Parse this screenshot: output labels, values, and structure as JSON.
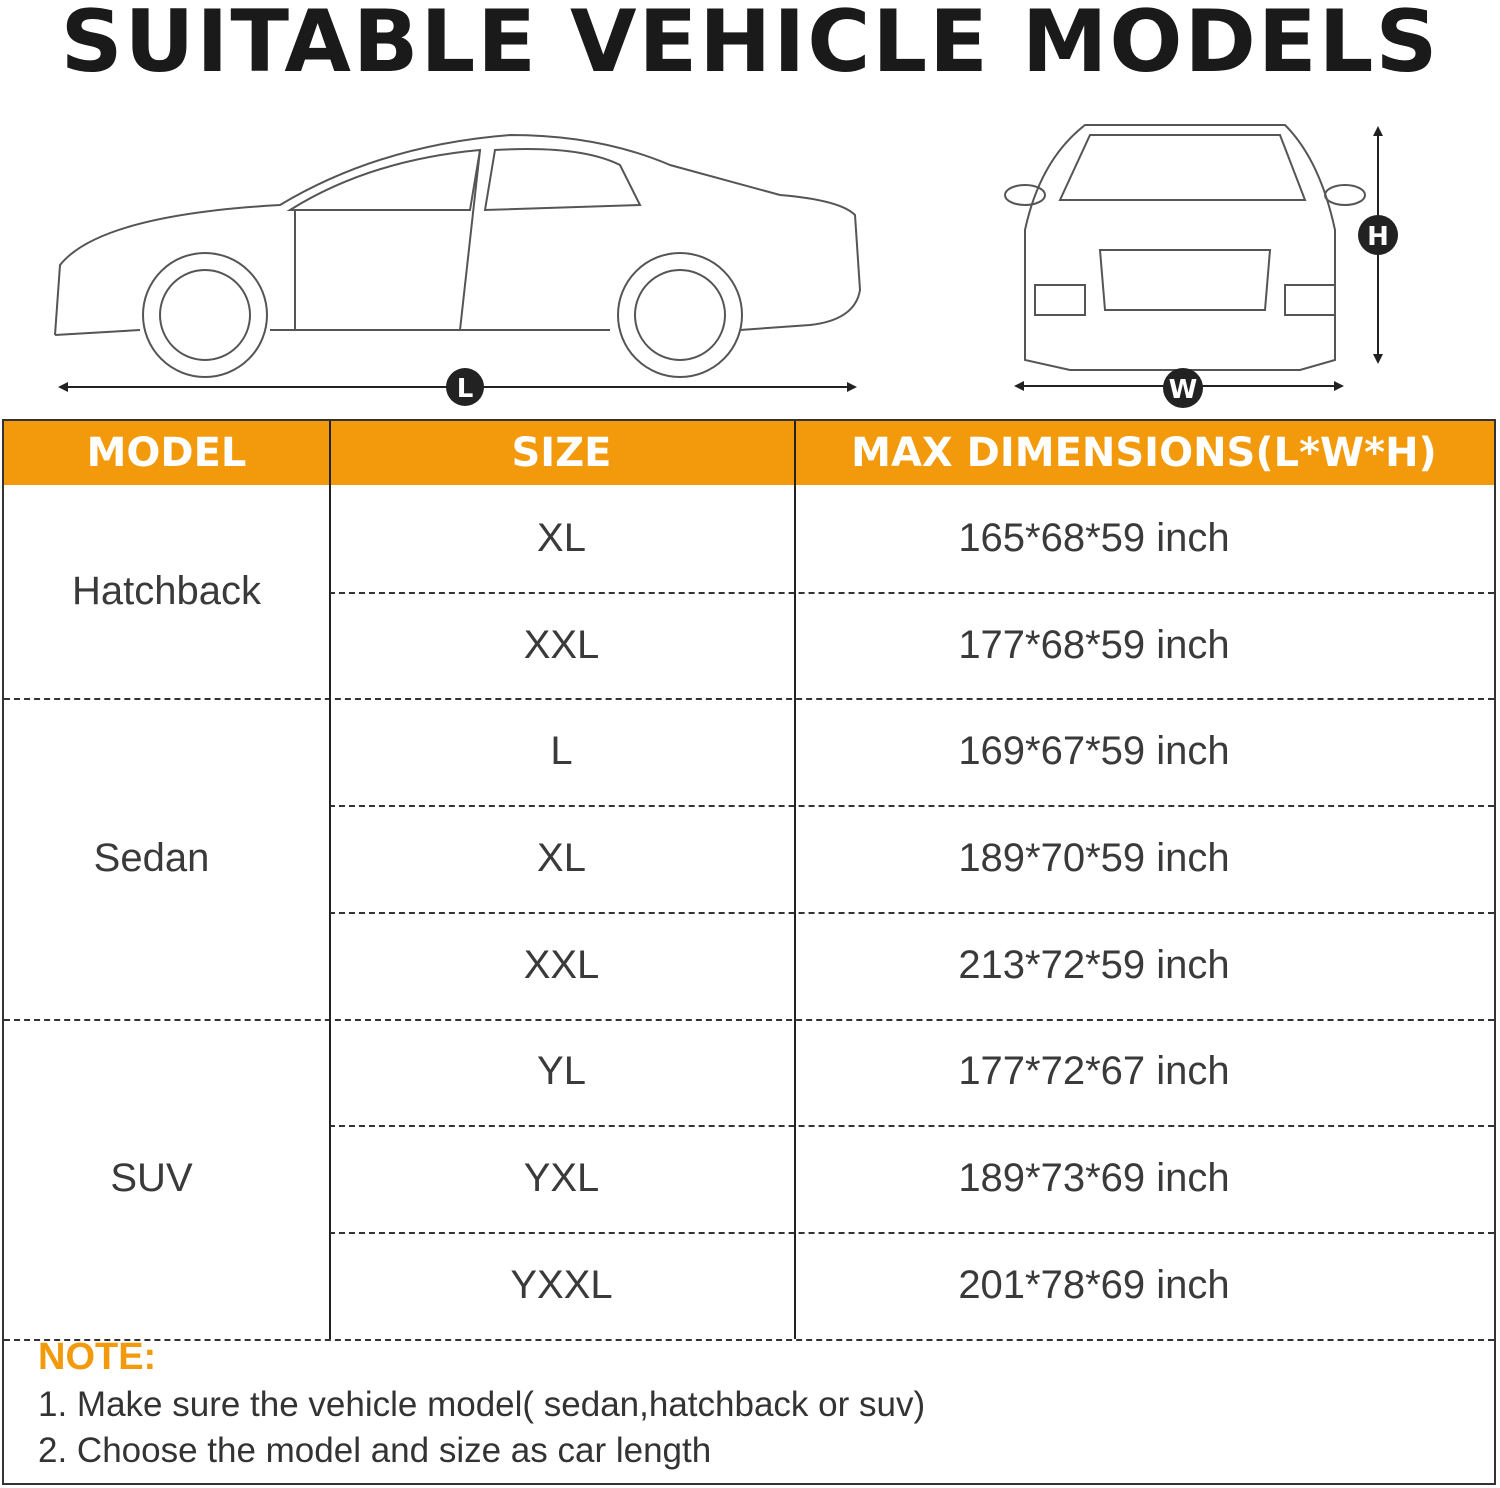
{
  "title": "SUITABLE VEHICLE MODELS",
  "diagram": {
    "length_label": "L",
    "width_label": "W",
    "height_label": "H"
  },
  "colors": {
    "accent": "#f29a0b",
    "text": "#3a3a3a"
  },
  "table": {
    "headers": [
      "MODEL",
      "SIZE",
      "MAX DIMENSIONS(L*W*H)"
    ],
    "groups": [
      {
        "model": "Hatchback",
        "rows": [
          {
            "size": "XL",
            "dims": "165*68*59 inch"
          },
          {
            "size": "XXL",
            "dims": "177*68*59 inch"
          }
        ]
      },
      {
        "model": "Sedan",
        "rows": [
          {
            "size": "L",
            "dims": "169*67*59 inch"
          },
          {
            "size": "XL",
            "dims": "189*70*59 inch"
          },
          {
            "size": "XXL",
            "dims": "213*72*59 inch"
          }
        ]
      },
      {
        "model": "SUV",
        "rows": [
          {
            "size": "YL",
            "dims": "177*72*67 inch"
          },
          {
            "size": "YXL",
            "dims": "189*73*69 inch"
          },
          {
            "size": "YXXL",
            "dims": "201*78*69 inch"
          }
        ]
      }
    ]
  },
  "note": {
    "title": "NOTE:",
    "lines": [
      "1. Make sure the vehicle model( sedan,hatchback or suv)",
      "2. Choose the model and size as car length"
    ]
  }
}
